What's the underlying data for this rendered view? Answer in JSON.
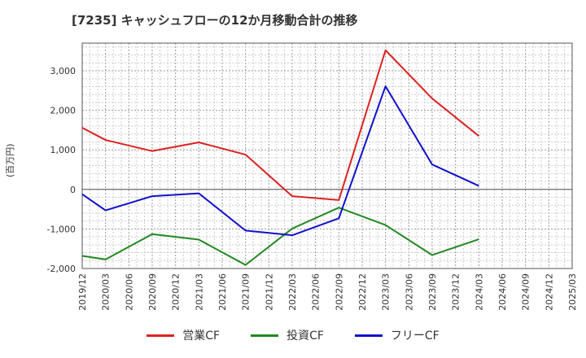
{
  "chart_data": {
    "type": "line",
    "title": "[7235]  キャッシュフローの12か月移動合計の推移",
    "ylabel": "(百万円)",
    "xlabel": "",
    "ylim": [
      -2000,
      3700
    ],
    "yticks": [
      -2000,
      -1000,
      0,
      1000,
      2000,
      3000
    ],
    "ytick_labels": [
      "-2,000",
      "-1,000",
      "0",
      "1,000",
      "2,000",
      "3,000"
    ],
    "x": [
      "2019/12",
      "2020/03",
      "2020/06",
      "2020/09",
      "2020/12",
      "2021/03",
      "2021/06",
      "2021/09",
      "2021/12",
      "2022/03",
      "2022/06",
      "2022/09",
      "2022/12",
      "2023/03",
      "2023/06",
      "2023/09",
      "2023/12",
      "2024/03",
      "2024/06",
      "2024/09",
      "2024/12",
      "2025/03"
    ],
    "grid": true,
    "legend_position": "bottom",
    "series": [
      {
        "name": "営業CF",
        "color": "#dd2222",
        "values": [
          1560,
          1250,
          null,
          970,
          null,
          1190,
          null,
          880,
          null,
          -170,
          null,
          -270,
          null,
          3520,
          null,
          2300,
          null,
          1350,
          null,
          null,
          null,
          null
        ]
      },
      {
        "name": "投資CF",
        "color": "#228822",
        "values": [
          -1680,
          -1770,
          null,
          -1130,
          null,
          -1270,
          null,
          -1910,
          null,
          -990,
          null,
          -460,
          null,
          -900,
          null,
          -1660,
          null,
          -1260,
          null,
          null,
          null,
          null
        ]
      },
      {
        "name": "フリーCF",
        "color": "#1111cc",
        "values": [
          -120,
          -530,
          null,
          -170,
          null,
          -100,
          null,
          -1040,
          null,
          -1160,
          null,
          -730,
          null,
          2610,
          null,
          630,
          null,
          90,
          null,
          null,
          null,
          null
        ]
      }
    ]
  }
}
